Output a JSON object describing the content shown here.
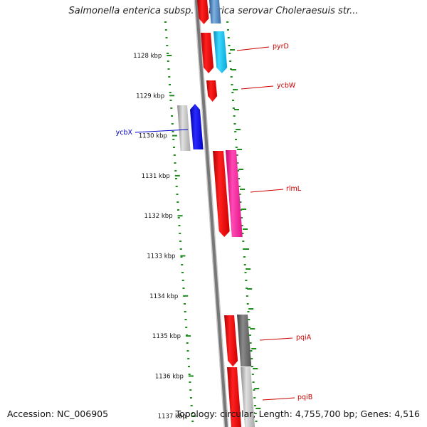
{
  "title": "Salmonella enterica subsp. enterica serovar Choleraesuis str...",
  "footer": {
    "accession": "Accession: NC_006905",
    "stats": "Topology: circular; Length: 4,755,700 bp; Genes: 4,516"
  },
  "ruler": [
    {
      "label": "1128 kbp"
    },
    {
      "label": "1129 kbp"
    },
    {
      "label": "1130 kbp"
    },
    {
      "label": "1131 kbp"
    },
    {
      "label": "1132 kbp"
    },
    {
      "label": "1133 kbp"
    },
    {
      "label": "1134 kbp"
    },
    {
      "label": "1135 kbp"
    },
    {
      "label": "1136 kbp"
    },
    {
      "label": "1137 kbp"
    }
  ],
  "genes": [
    {
      "name": "pyrD",
      "color": "#cc0000"
    },
    {
      "name": "ycbW",
      "color": "#cc0000"
    },
    {
      "name": "ycbX",
      "color": "#0000cc"
    },
    {
      "name": "rlmL",
      "color": "#cc0000"
    },
    {
      "name": "pqiA",
      "color": "#cc0000"
    },
    {
      "name": "pqiB",
      "color": "#cc0000"
    }
  ],
  "colors": {
    "backbone": "#777777",
    "ruler_ticks": "#1e8c1e",
    "feature_red": "#ff0000",
    "feature_cyan": "#1ec8f0",
    "feature_blue": "#0000ff",
    "feature_magenta": "#ff2aa0",
    "feature_grey": "#bdbdbd",
    "feature_darkgrey": "#6e6e6e",
    "feature_steelblue": "#4a7fb8"
  }
}
